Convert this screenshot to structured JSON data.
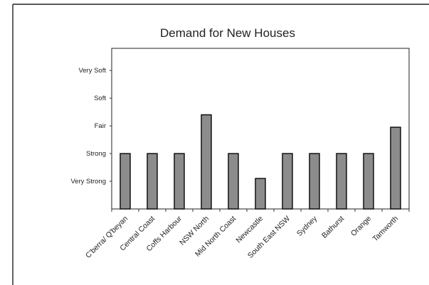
{
  "chart_data": {
    "type": "bar",
    "title": "Demand for New Houses",
    "xlabel": "",
    "ylabel": "",
    "categories": [
      "C'berra/ Q'beyan",
      "Central Coast",
      "Coffs Harbour",
      "NSW North",
      "Mid North Coast",
      "Newcastle",
      "South East NSW",
      "Sydney",
      "Bathurst",
      "Orange",
      "Tamworth"
    ],
    "values": [
      2,
      2,
      2,
      3.4,
      2,
      1.1,
      2,
      2,
      2,
      2,
      2.95
    ],
    "y_levels": [
      {
        "value": 1,
        "label": "Very Strong"
      },
      {
        "value": 2,
        "label": "Strong"
      },
      {
        "value": 3,
        "label": "Fair"
      },
      {
        "value": 4,
        "label": "Soft"
      },
      {
        "value": 5,
        "label": "Very Soft"
      }
    ],
    "ylim": [
      0,
      5.8
    ],
    "grid": false,
    "legend": "none",
    "colors": {
      "bar_fill": "#8c8c8c",
      "bar_stroke": "#111111",
      "axis": "#333333",
      "frame": "#222222"
    }
  }
}
